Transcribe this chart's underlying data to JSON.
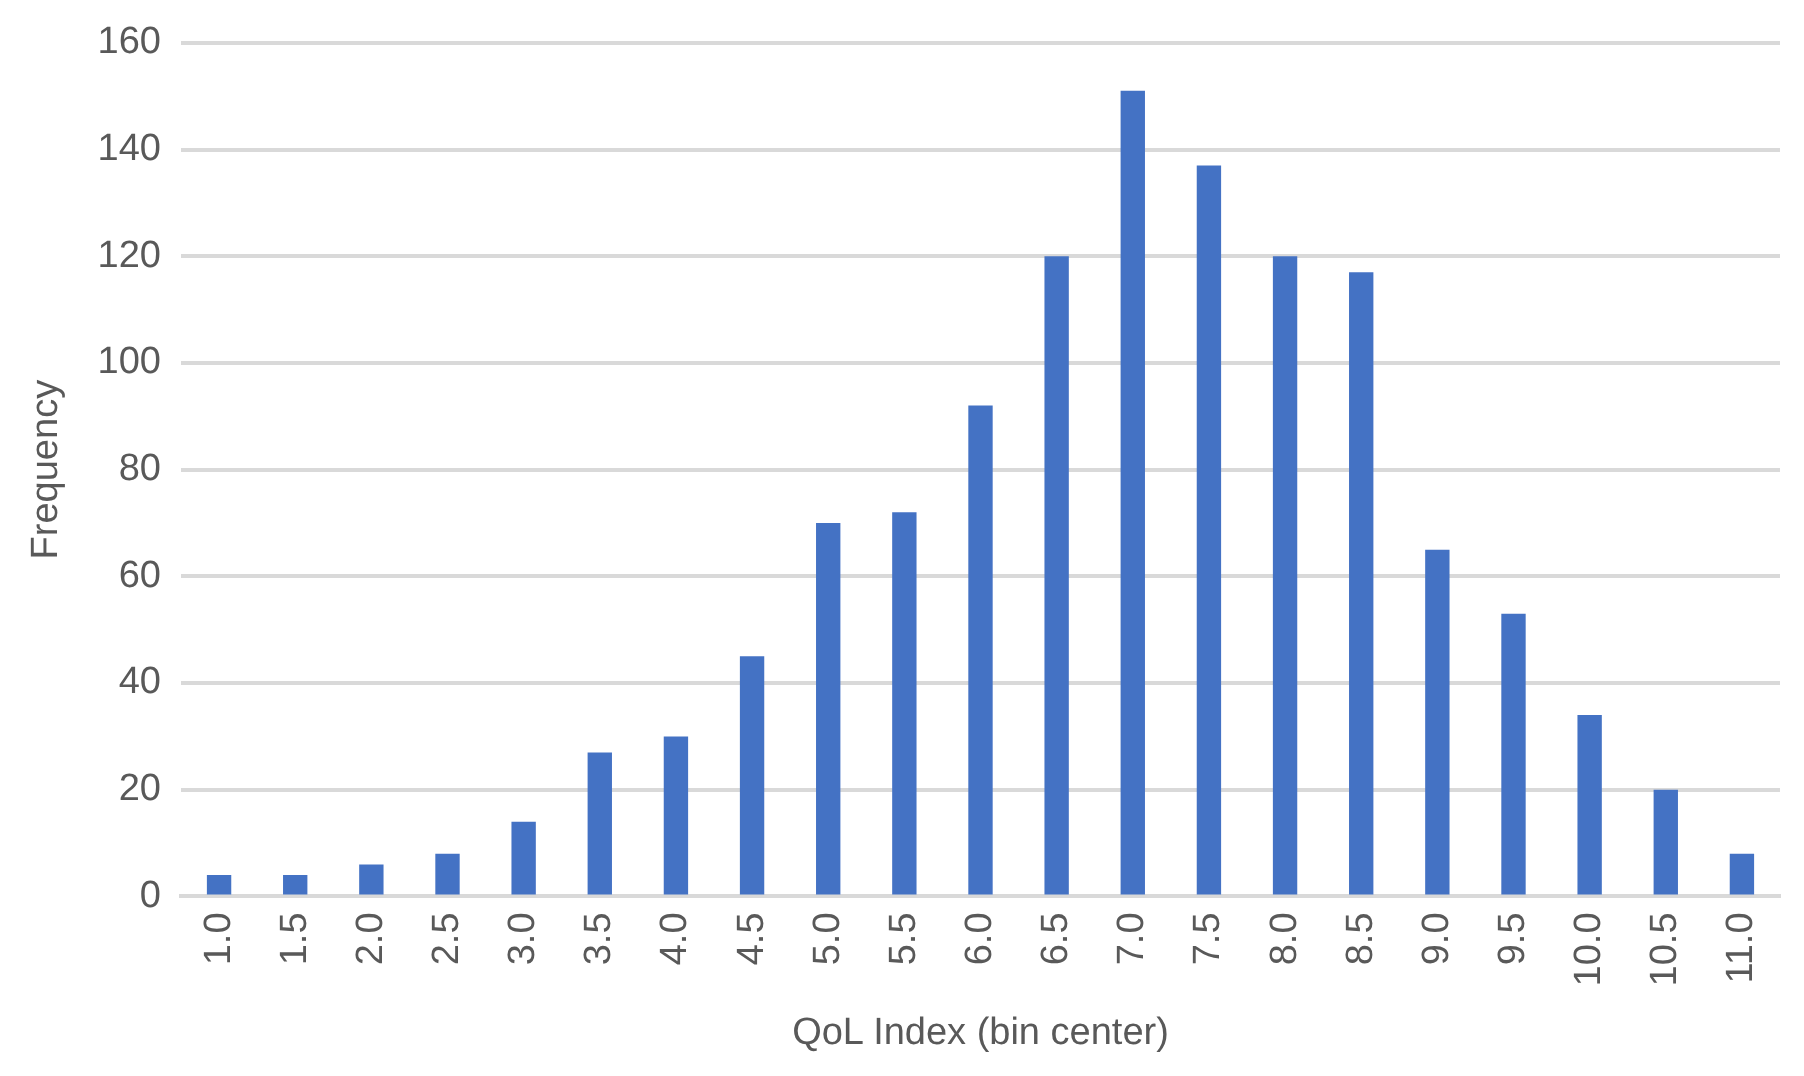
{
  "chart_data": {
    "type": "bar",
    "xlabel": "QoL Index (bin center)",
    "ylabel": "Frequency",
    "categories": [
      "1.0",
      "1.5",
      "2.0",
      "2.5",
      "3.0",
      "3.5",
      "4.0",
      "4.5",
      "5.0",
      "5.5",
      "6.0",
      "6.5",
      "7.0",
      "7.5",
      "8.0",
      "8.5",
      "9.0",
      "9.5",
      "10.0",
      "10.5",
      "11.0"
    ],
    "values": [
      4,
      4,
      6,
      8,
      14,
      27,
      30,
      45,
      70,
      72,
      92,
      120,
      151,
      137,
      120,
      117,
      65,
      53,
      34,
      20,
      8
    ],
    "color": "#4472c4",
    "ylim": [
      0,
      160
    ],
    "yticks": [
      0,
      20,
      40,
      60,
      80,
      100,
      120,
      140,
      160
    ],
    "grid": "y",
    "legend": false
  }
}
